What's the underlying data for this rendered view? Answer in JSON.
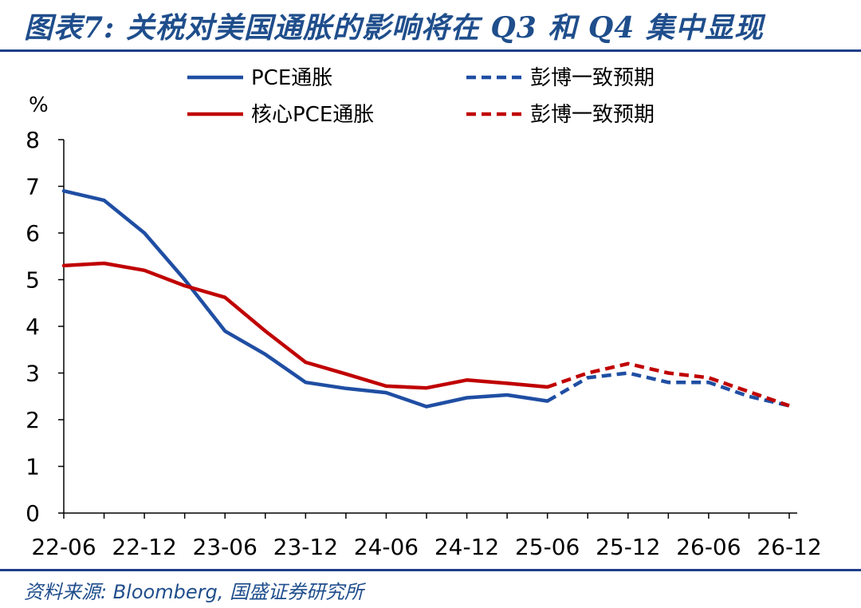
{
  "header": {
    "title": "图表7:  关税对美国通胀的影响将在 Q3 和 Q4 集中显现"
  },
  "footer": {
    "source": "资料来源:  Bloomberg,  国盛证券研究所"
  },
  "colors": {
    "blue": "#1f4ea3",
    "red": "#c00000",
    "rule": "#1f3f8a",
    "title": "#1f4e8c"
  },
  "chart_data": {
    "type": "line",
    "ylabel": "%",
    "ylim": [
      0,
      8
    ],
    "yticks": [
      "0",
      "1",
      "2",
      "3",
      "4",
      "5",
      "6",
      "7",
      "8"
    ],
    "xticks": [
      "22-06",
      "22-12",
      "23-06",
      "23-12",
      "24-06",
      "24-12",
      "25-06",
      "25-12",
      "26-06",
      "26-12"
    ],
    "grid": false,
    "legend_placement": "top",
    "legend": [
      {
        "label": "PCE通胀",
        "color": "#1f4ea3",
        "style": "solid"
      },
      {
        "label": "彭博一致预期",
        "color": "#1f4ea3",
        "style": "dashed"
      },
      {
        "label": "核心PCE通胀",
        "color": "#c00000",
        "style": "solid"
      },
      {
        "label": "彭博一致预期",
        "color": "#c00000",
        "style": "dashed"
      }
    ],
    "series": [
      {
        "name": "PCE通胀",
        "color": "#1f4ea3",
        "style": "solid",
        "x": [
          "22-06",
          "22-09",
          "22-12",
          "23-03",
          "23-06",
          "23-09",
          "23-12",
          "24-03",
          "24-06",
          "24-09",
          "24-12",
          "25-03",
          "25-06"
        ],
        "values": [
          6.9,
          6.7,
          6.0,
          5.0,
          3.9,
          3.4,
          2.8,
          2.67,
          2.58,
          2.28,
          2.47,
          2.53,
          2.4
        ]
      },
      {
        "name": "彭博一致预期",
        "color": "#1f4ea3",
        "style": "dashed",
        "x": [
          "25-06",
          "25-09",
          "25-12",
          "26-03",
          "26-06",
          "26-09",
          "26-12"
        ],
        "values": [
          2.4,
          2.9,
          3.0,
          2.8,
          2.8,
          2.5,
          2.3
        ]
      },
      {
        "name": "核心PCE通胀",
        "color": "#c00000",
        "style": "solid",
        "x": [
          "22-06",
          "22-09",
          "22-12",
          "23-03",
          "23-06",
          "23-09",
          "23-12",
          "24-03",
          "24-06",
          "24-09",
          "24-12",
          "25-03",
          "25-06"
        ],
        "values": [
          5.3,
          5.35,
          5.2,
          4.87,
          4.62,
          3.9,
          3.23,
          2.98,
          2.72,
          2.68,
          2.85,
          2.78,
          2.7
        ]
      },
      {
        "name": "彭博一致预期",
        "color": "#c00000",
        "style": "dashed",
        "x": [
          "25-06",
          "25-09",
          "25-12",
          "26-03",
          "26-06",
          "26-09",
          "26-12"
        ],
        "values": [
          2.7,
          3.0,
          3.2,
          3.0,
          2.9,
          2.6,
          2.3
        ]
      }
    ]
  }
}
